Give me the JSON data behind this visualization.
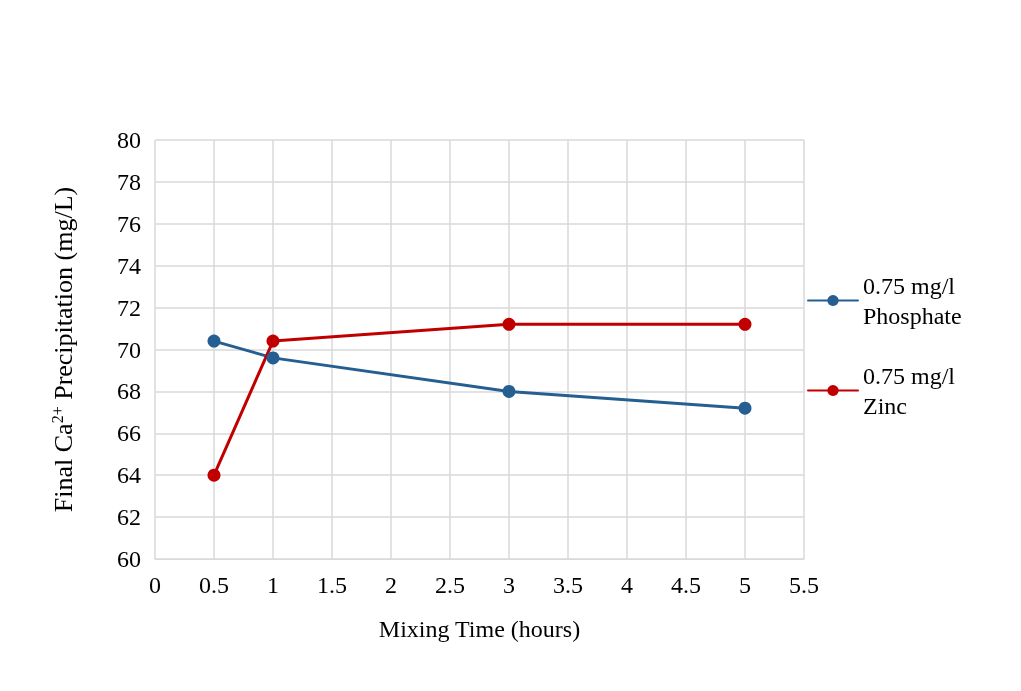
{
  "chart_data": {
    "type": "line",
    "xlabel": "Mixing Time (hours)",
    "ylabel": "Final Ca$^{2+}$ Precipitation (mg/L)",
    "x": [
      0.5,
      1,
      3,
      5
    ],
    "series": [
      {
        "name": "0.75 mg/l Phosphate",
        "color": "#255e91",
        "values": [
          70.4,
          69.6,
          68.0,
          67.2
        ]
      },
      {
        "name": "0.75 mg/l Zinc",
        "color": "#c00000",
        "values": [
          64.0,
          70.4,
          71.2,
          71.2
        ]
      }
    ],
    "xlim": [
      0,
      5.5
    ],
    "xticks": [
      0,
      0.5,
      1,
      1.5,
      2,
      2.5,
      3,
      3.5,
      4,
      4.5,
      5,
      5.5
    ],
    "ylim": [
      60,
      80
    ],
    "yticks": [
      60,
      62,
      64,
      66,
      68,
      70,
      72,
      74,
      76,
      78,
      80
    ],
    "grid": true,
    "legend": "right",
    "marker": "circle",
    "line_style": "solid"
  }
}
